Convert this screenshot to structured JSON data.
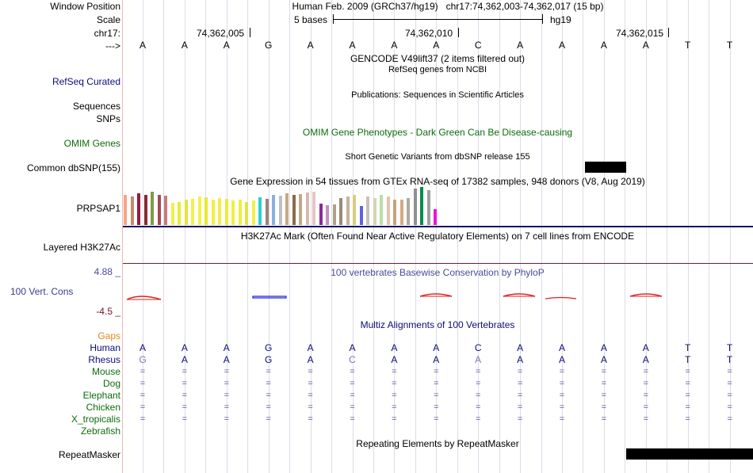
{
  "header": {
    "window_position_label": "Window Position",
    "window_position_value": "Human Feb. 2009 (GRCh37/hg19)   chr17:74,362,003-74,362,017 (15 bp)",
    "scale_label": "Scale",
    "scale_value": "5 bases",
    "scale_assembly": "hg19",
    "chrom_label": "chr17:",
    "strand_label": "--->",
    "ticks": [
      "74,362,005",
      "74,362,010",
      "74,362,015"
    ]
  },
  "bases": [
    "A",
    "A",
    "A",
    "G",
    "A",
    "A",
    "A",
    "A",
    "C",
    "A",
    "A",
    "A",
    "A",
    "T",
    "T"
  ],
  "tracks": {
    "gencode_title": "GENCODE V49lift37 (2 items filtered out)",
    "refseq_label": "RefSeq Curated",
    "refseq_title": "RefSeq genes from NCBI",
    "sequences_label": "Sequences",
    "sequences_title": "Publications: Sequences in Scientific Articles",
    "snps_label": "SNPs",
    "omim_title": "OMIM Gene Phenotypes - Dark Green Can Be Disease-causing",
    "omim_label": "OMIM Genes",
    "dbsnp_title": "Short Genetic Variants from dbSNP release 155",
    "dbsnp_label": "Common dbSNP(155)",
    "gtex_title": "Gene Expression in 54 tissues from GTEx RNA-seq of 17382 samples, 948 donors (V8, Aug 2019)",
    "gtex_label": "PRPSAP1",
    "h3k27_title": "H3K27Ac Mark (Often Found Near Active Regulatory Elements) on 7 cell lines from ENCODE",
    "h3k27_label": "Layered H3K27Ac",
    "phylop_title": "100 vertebrates Basewise Conservation by PhyloP",
    "phylop_label": "100 Vert. Cons",
    "phylop_max": "4.88 _",
    "phylop_min": "-4.5 _",
    "multiz_title": "Multiz Alignments of 100 Vertebrates",
    "gaps_label": "Gaps",
    "repeat_title": "Repeating Elements by RepeatMasker",
    "repeat_label": "RepeatMasker"
  },
  "alignment": [
    {
      "species": "Human",
      "bases": [
        "A",
        "A",
        "A",
        "G",
        "A",
        "A",
        "A",
        "A",
        "C",
        "A",
        "A",
        "A",
        "A",
        "T",
        "T"
      ]
    },
    {
      "species": "Rhesus",
      "bases": [
        "G",
        "A",
        "A",
        "G",
        "A",
        "C",
        "A",
        "A",
        "A",
        "A",
        "A",
        "A",
        "A",
        "T",
        "T"
      ]
    },
    {
      "species": "Mouse",
      "bases": [
        "=",
        "=",
        "=",
        "=",
        "=",
        "=",
        "=",
        "=",
        "=",
        "=",
        "=",
        "=",
        "=",
        "=",
        "="
      ]
    },
    {
      "species": "Dog",
      "bases": [
        "=",
        "=",
        "=",
        "=",
        "=",
        "=",
        "=",
        "=",
        "=",
        "=",
        "=",
        "=",
        "=",
        "=",
        "="
      ]
    },
    {
      "species": "Elephant",
      "bases": [
        "=",
        "=",
        "=",
        "=",
        "=",
        "=",
        "=",
        "=",
        "=",
        "=",
        "=",
        "=",
        "=",
        "=",
        "="
      ]
    },
    {
      "species": "Chicken",
      "bases": [
        "=",
        "=",
        "=",
        "=",
        "=",
        "=",
        "=",
        "=",
        "=",
        "=",
        "=",
        "=",
        "=",
        "=",
        "="
      ]
    },
    {
      "species": "X_tropicalis",
      "bases": [
        "=",
        "=",
        "=",
        "=",
        "=",
        "=",
        "=",
        "=",
        "=",
        "=",
        "=",
        "=",
        "=",
        "=",
        "="
      ]
    },
    {
      "species": "Zebrafish",
      "bases": []
    }
  ],
  "gtex_colors": [
    "#f5a58a",
    "#c98a64",
    "#9b1a3c",
    "#8a2a30",
    "#7e9b4a",
    "#a44a52",
    "#c97a7a",
    "#f0f04a",
    "#eaea30",
    "#e4e440",
    "#f0f050",
    "#f4f04a",
    "#e8e830",
    "#f0f040",
    "#f4ec44",
    "#eaea40",
    "#f0f040",
    "#f0ee40",
    "#e4e440",
    "#f0f04a",
    "#2ed0d0",
    "#a08080",
    "#8ab0e0",
    "#c0c0c0",
    "#c8a882",
    "#8a6a4a",
    "#c0a888",
    "#d8b8b0",
    "#e8c4c4",
    "#8a2a9a",
    "#c090c8",
    "#b0a088",
    "#988a7a",
    "#c4b49a",
    "#d8cc80",
    "#6060e0",
    "#c8c0b8",
    "#d4d4b0",
    "#b8e0a8",
    "#e8c0b0",
    "#cda07a",
    "#d8a880",
    "#b0a8a0",
    "#909090",
    "#0a8a4a",
    "#a0a0a0",
    "#f010e0"
  ],
  "gtex_values": [
    38,
    36,
    40,
    38,
    42,
    38,
    37,
    28,
    29,
    32,
    33,
    36,
    35,
    32,
    34,
    33,
    31,
    32,
    29,
    31,
    35,
    33,
    38,
    37,
    40,
    38,
    39,
    41,
    42,
    27,
    25,
    26,
    34,
    36,
    38,
    24,
    36,
    34,
    38,
    36,
    32,
    32,
    34,
    46,
    48,
    44,
    20
  ]
}
